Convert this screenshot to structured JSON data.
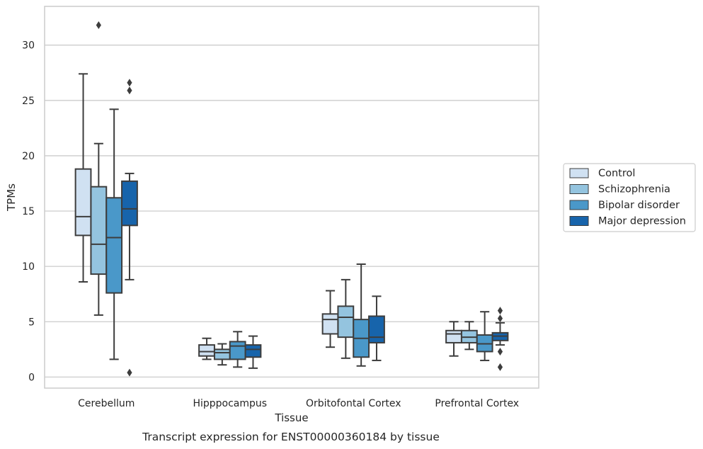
{
  "chart_data": {
    "type": "box",
    "caption": "Transcript expression for ENST00000360184 by tissue",
    "xlabel": "Tissue",
    "ylabel": "TPMs",
    "ylim": [
      -1,
      33.5
    ],
    "yticks": [
      0,
      5,
      10,
      15,
      20,
      25,
      30
    ],
    "grid": true,
    "legend_position": "right",
    "categories": [
      "Cerebellum",
      "Hipppocampus",
      "Orbitofontal Cortex",
      "Prefrontal Cortex"
    ],
    "series": [
      {
        "name": "Control",
        "color": "#d0e1f2",
        "boxes": [
          {
            "whisker_low": 8.6,
            "q1": 12.8,
            "median": 14.5,
            "q3": 18.8,
            "whisker_high": 27.4,
            "outliers": []
          },
          {
            "whisker_low": 1.6,
            "q1": 1.9,
            "median": 2.3,
            "q3": 2.9,
            "whisker_high": 3.5,
            "outliers": []
          },
          {
            "whisker_low": 2.7,
            "q1": 3.9,
            "median": 5.2,
            "q3": 5.7,
            "whisker_high": 7.8,
            "outliers": []
          },
          {
            "whisker_low": 1.9,
            "q1": 3.1,
            "median": 3.9,
            "q3": 4.2,
            "whisker_high": 5.0,
            "outliers": []
          }
        ]
      },
      {
        "name": "Schizophrenia",
        "color": "#94c4df",
        "boxes": [
          {
            "whisker_low": 5.6,
            "q1": 9.3,
            "median": 12.0,
            "q3": 17.2,
            "whisker_high": 21.1,
            "outliers": [
              31.8
            ]
          },
          {
            "whisker_low": 1.1,
            "q1": 1.6,
            "median": 2.2,
            "q3": 2.5,
            "whisker_high": 3.0,
            "outliers": []
          },
          {
            "whisker_low": 1.7,
            "q1": 3.6,
            "median": 5.4,
            "q3": 6.4,
            "whisker_high": 8.8,
            "outliers": []
          },
          {
            "whisker_low": 2.5,
            "q1": 3.1,
            "median": 3.6,
            "q3": 4.2,
            "whisker_high": 5.0,
            "outliers": []
          }
        ]
      },
      {
        "name": "Bipolar disorder",
        "color": "#4a98c9",
        "boxes": [
          {
            "whisker_low": 1.6,
            "q1": 7.6,
            "median": 12.6,
            "q3": 16.2,
            "whisker_high": 24.2,
            "outliers": []
          },
          {
            "whisker_low": 0.9,
            "q1": 1.6,
            "median": 2.8,
            "q3": 3.2,
            "whisker_high": 4.1,
            "outliers": []
          },
          {
            "whisker_low": 1.0,
            "q1": 1.8,
            "median": 3.5,
            "q3": 5.2,
            "whisker_high": 10.2,
            "outliers": []
          },
          {
            "whisker_low": 1.5,
            "q1": 2.3,
            "median": 3.0,
            "q3": 3.8,
            "whisker_high": 5.9,
            "outliers": []
          }
        ]
      },
      {
        "name": "Major depression",
        "color": "#1764ab",
        "boxes": [
          {
            "whisker_low": 8.8,
            "q1": 13.7,
            "median": 15.2,
            "q3": 17.7,
            "whisker_high": 18.4,
            "outliers": [
              0.4,
              25.9,
              26.6
            ]
          },
          {
            "whisker_low": 0.8,
            "q1": 1.8,
            "median": 2.5,
            "q3": 2.9,
            "whisker_high": 3.7,
            "outliers": []
          },
          {
            "whisker_low": 1.5,
            "q1": 3.1,
            "median": 3.6,
            "q3": 5.5,
            "whisker_high": 7.3,
            "outliers": []
          },
          {
            "whisker_low": 2.9,
            "q1": 3.3,
            "median": 3.7,
            "q3": 4.0,
            "whisker_high": 4.9,
            "outliers": [
              0.9,
              2.3,
              5.3,
              6.0
            ]
          }
        ]
      }
    ]
  }
}
